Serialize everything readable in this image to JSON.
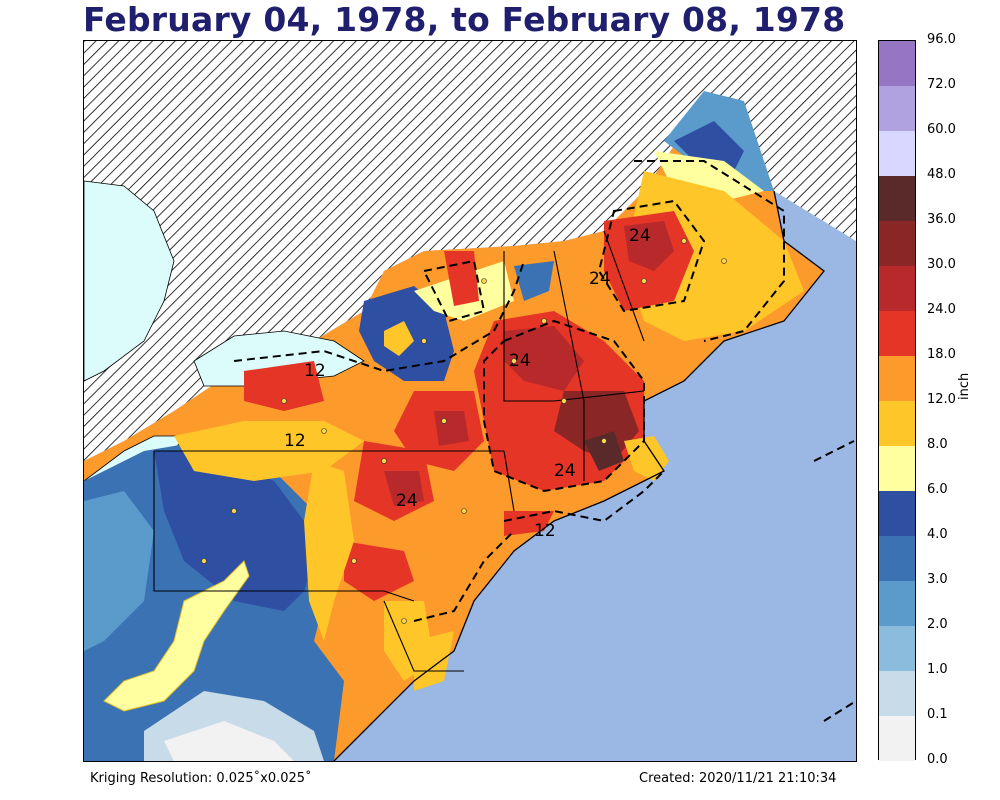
{
  "title": "February 04, 1978, to February 08, 1978",
  "colorbar": {
    "unit": "inch",
    "levels": [
      "0.0",
      "0.1",
      "1.0",
      "2.0",
      "3.0",
      "4.0",
      "6.0",
      "8.0",
      "12.0",
      "18.0",
      "24.0",
      "30.0",
      "36.0",
      "48.0",
      "60.0",
      "72.0",
      "96.0"
    ],
    "colors": [
      "#f2f2f2",
      "#c8dbe8",
      "#8bbcdd",
      "#5a9bcc",
      "#3a72b3",
      "#2f4fa3",
      "#ffff9f",
      "#ffc629",
      "#fd9a2c",
      "#e53526",
      "#b7292b",
      "#8b2626",
      "#5a2a2a",
      "#d9d6ff",
      "#b0a2e0",
      "#9575c4"
    ]
  },
  "contour_labels": [
    "24",
    "24",
    "24",
    "24",
    "12",
    "12",
    "24",
    "12"
  ],
  "footer": {
    "resolution": "Kriging Resolution: 0.025˚x0.025˚",
    "created": "Created: 2020/11/21 21:10:34"
  },
  "map_colors": {
    "ocean": "#9ab8e3",
    "lake": "#dcfbfb",
    "canada": "#ffffff"
  }
}
